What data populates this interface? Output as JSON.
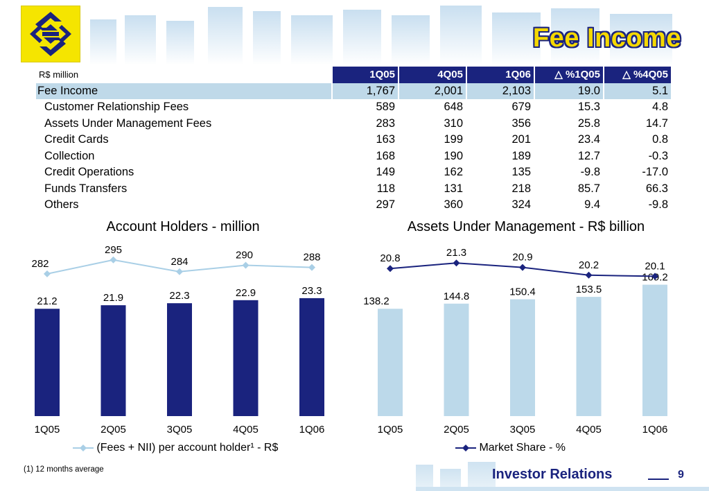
{
  "header": {
    "title": "Fee Income"
  },
  "table": {
    "unit_label": "R$ million",
    "columns": [
      "1Q05",
      "4Q05",
      "1Q06",
      "%1Q05",
      "%4Q05"
    ],
    "delta_symbol": "△",
    "total": {
      "label": "Fee Income",
      "values": [
        "1,767",
        "2,001",
        "2,103",
        "19.0",
        "5.1"
      ]
    },
    "rows": [
      {
        "label": "Customer Relationship Fees",
        "values": [
          "589",
          "648",
          "679",
          "15.3",
          "4.8"
        ]
      },
      {
        "label": "Assets Under Management Fees",
        "values": [
          "283",
          "310",
          "356",
          "25.8",
          "14.7"
        ]
      },
      {
        "label": "Credit Cards",
        "values": [
          "163",
          "199",
          "201",
          "23.4",
          "0.8"
        ]
      },
      {
        "label": "Collection",
        "values": [
          "168",
          "190",
          "189",
          "12.7",
          "-0.3"
        ]
      },
      {
        "label": "Credit Operations",
        "values": [
          "149",
          "162",
          "135",
          "-9.8",
          "-17.0"
        ]
      },
      {
        "label": "Funds Transfers",
        "values": [
          "118",
          "131",
          "218",
          "85.7",
          "66.3"
        ]
      },
      {
        "label": "Others",
        "values": [
          "297",
          "360",
          "324",
          "9.4",
          "-9.8"
        ]
      }
    ]
  },
  "chart_data": [
    {
      "type": "bar",
      "title": "Account Holders - million",
      "categories": [
        "1Q05",
        "2Q05",
        "3Q05",
        "4Q05",
        "1Q06"
      ],
      "values": [
        21.2,
        21.9,
        22.3,
        22.9,
        23.3
      ],
      "bar_color": "#1a237e",
      "line_series": {
        "name": "(Fees + NII) per account holder¹ - R$",
        "values": [
          282,
          295,
          284,
          290,
          288
        ],
        "color": "#a9cfe6"
      },
      "legend_position": "bottom"
    },
    {
      "type": "bar",
      "title": "Assets Under Management - R$ billion",
      "categories": [
        "1Q05",
        "2Q05",
        "3Q05",
        "4Q05",
        "1Q06"
      ],
      "values": [
        138.2,
        144.8,
        150.4,
        153.5,
        169.2
      ],
      "bar_color": "#bcd9ea",
      "line_series": {
        "name": "Market Share - %",
        "values": [
          20.8,
          21.3,
          20.9,
          20.2,
          20.1
        ],
        "color": "#1a237e"
      },
      "legend_position": "bottom"
    }
  ],
  "footnote": "(1) 12 months average",
  "footer": {
    "label": "Investor Relations",
    "page": "9"
  }
}
